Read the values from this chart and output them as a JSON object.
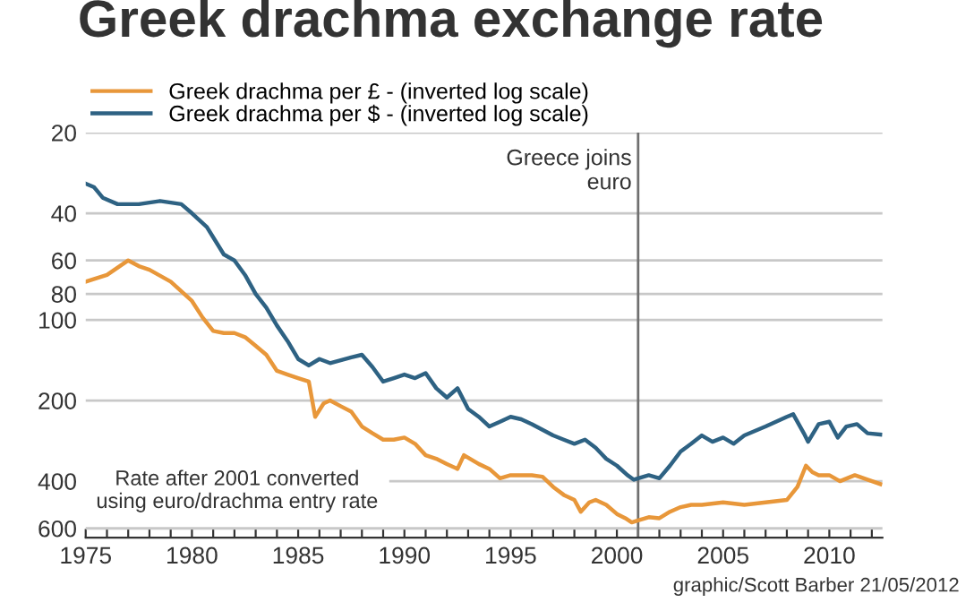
{
  "chart_data": {
    "type": "line",
    "title": "Greek drachma exchange rate",
    "series": [
      {
        "name": "Greek drachma per £ - (inverted log scale)",
        "color": "#e8973a",
        "x": [
          1975.0,
          1975.5,
          1976.0,
          1977.0,
          1977.5,
          1978.0,
          1979.0,
          1980.0,
          1980.5,
          1981.0,
          1981.5,
          1982.0,
          1982.5,
          1983.0,
          1983.5,
          1984.0,
          1984.5,
          1985.0,
          1985.5,
          1985.8,
          1986.2,
          1986.5,
          1987.0,
          1987.5,
          1988.0,
          1988.5,
          1989.0,
          1989.5,
          1990.0,
          1990.5,
          1991.0,
          1991.5,
          1992.0,
          1992.5,
          1992.8,
          1993.5,
          1994.0,
          1994.5,
          1995.0,
          1996.0,
          1996.5,
          1997.0,
          1997.5,
          1998.0,
          1998.3,
          1998.7,
          1999.0,
          1999.5,
          2000.0,
          2000.4,
          2000.7,
          2001.0,
          2001.5,
          2002.0,
          2002.5,
          2003.0,
          2003.5,
          2004.0,
          2005.0,
          2006.0,
          2007.0,
          2008.0,
          2008.5,
          2008.9,
          2009.2,
          2009.5,
          2010.0,
          2010.5,
          2011.2,
          2011.8,
          2012.4
        ],
        "values": [
          72,
          70,
          68,
          60,
          63,
          65,
          72,
          85,
          98,
          110,
          112,
          112,
          116,
          125,
          135,
          155,
          160,
          165,
          170,
          230,
          205,
          200,
          210,
          220,
          250,
          265,
          280,
          280,
          275,
          290,
          320,
          330,
          345,
          360,
          320,
          345,
          360,
          390,
          380,
          380,
          385,
          420,
          450,
          470,
          520,
          480,
          470,
          490,
          530,
          550,
          570,
          560,
          545,
          550,
          520,
          500,
          490,
          490,
          480,
          490,
          480,
          470,
          420,
          350,
          370,
          380,
          380,
          400,
          380,
          395,
          410
        ]
      },
      {
        "name": "Greek drachma per $ - (inverted log scale)",
        "color": "#2e6283",
        "x": [
          1975.0,
          1975.4,
          1975.8,
          1976.5,
          1977.5,
          1978.5,
          1979.5,
          1980.0,
          1980.7,
          1981.5,
          1982.0,
          1982.5,
          1983.0,
          1983.5,
          1984.0,
          1984.5,
          1985.0,
          1985.5,
          1986.0,
          1986.5,
          1987.5,
          1988.0,
          1988.5,
          1989.0,
          1989.5,
          1990.0,
          1990.5,
          1991.0,
          1991.5,
          1992.0,
          1992.5,
          1993.0,
          1993.5,
          1994.0,
          1994.5,
          1995.0,
          1995.5,
          1996.0,
          1997.0,
          1997.5,
          1998.0,
          1998.5,
          1999.0,
          1999.5,
          2000.0,
          2000.5,
          2000.8,
          2001.5,
          2002.0,
          2002.5,
          2003.0,
          2003.5,
          2004.0,
          2004.5,
          2005.0,
          2005.5,
          2006.0,
          2007.0,
          2008.0,
          2008.3,
          2008.8,
          2009.0,
          2009.5,
          2010.0,
          2010.4,
          2010.8,
          2011.3,
          2011.8,
          2012.4
        ],
        "values": [
          31,
          32,
          35,
          37,
          37,
          36,
          37,
          40,
          45,
          57,
          60,
          68,
          80,
          90,
          105,
          120,
          140,
          148,
          140,
          145,
          138,
          135,
          150,
          170,
          165,
          160,
          165,
          158,
          180,
          195,
          180,
          215,
          230,
          250,
          240,
          230,
          235,
          245,
          270,
          280,
          290,
          280,
          300,
          330,
          350,
          380,
          395,
          380,
          390,
          350,
          310,
          290,
          270,
          285,
          275,
          290,
          270,
          250,
          230,
          225,
          265,
          285,
          245,
          240,
          275,
          250,
          245,
          265,
          268
        ]
      }
    ],
    "log": "y",
    "ylim": [
      650,
      20
    ],
    "yticks": [
      20,
      40,
      60,
      80,
      100,
      200,
      400,
      600
    ],
    "xlim": [
      1975,
      2012.5
    ],
    "xticks": [
      1975,
      {
        "value": 1976,
        "label": null
      },
      {
        "value": 1977,
        "label": null
      },
      {
        "value": 1978,
        "label": null
      },
      {
        "value": 1979,
        "label": null
      },
      1980,
      {
        "value": 1981,
        "label": null
      },
      {
        "value": 1982,
        "label": null
      },
      {
        "value": 1983,
        "label": null
      },
      {
        "value": 1984,
        "label": null
      },
      1985,
      {
        "value": 1986,
        "label": null
      },
      {
        "value": 1987,
        "label": null
      },
      {
        "value": 1988,
        "label": null
      },
      {
        "value": 1989,
        "label": null
      },
      1990,
      {
        "value": 1991,
        "label": null
      },
      {
        "value": 1992,
        "label": null
      },
      {
        "value": 1993,
        "label": null
      },
      {
        "value": 1994,
        "label": null
      },
      1995,
      {
        "value": 1996,
        "label": null
      },
      {
        "value": 1997,
        "label": null
      },
      {
        "value": 1998,
        "label": null
      },
      {
        "value": 1999,
        "label": null
      },
      2000,
      {
        "value": 2001,
        "label": null
      },
      {
        "value": 2002,
        "label": null
      },
      {
        "value": 2003,
        "label": null
      },
      {
        "value": 2004,
        "label": null
      },
      2005,
      {
        "value": 2006,
        "label": null
      },
      {
        "value": 2007,
        "label": null
      },
      {
        "value": 2008,
        "label": null
      },
      {
        "value": 2009,
        "label": null
      },
      2010,
      {
        "value": 2011,
        "label": null
      },
      {
        "value": 2012,
        "label": null
      }
    ],
    "grid": "y",
    "legend": "top left",
    "ref_lines": [
      {
        "axis": "x",
        "value": 2001,
        "label": "Greece joins\neuro",
        "color": "#707070"
      }
    ],
    "annotations": [
      "Rate after 2001 converted\nusing euro/drachma entry rate",
      "graphic/Scott Barber 21/05/2012"
    ]
  }
}
